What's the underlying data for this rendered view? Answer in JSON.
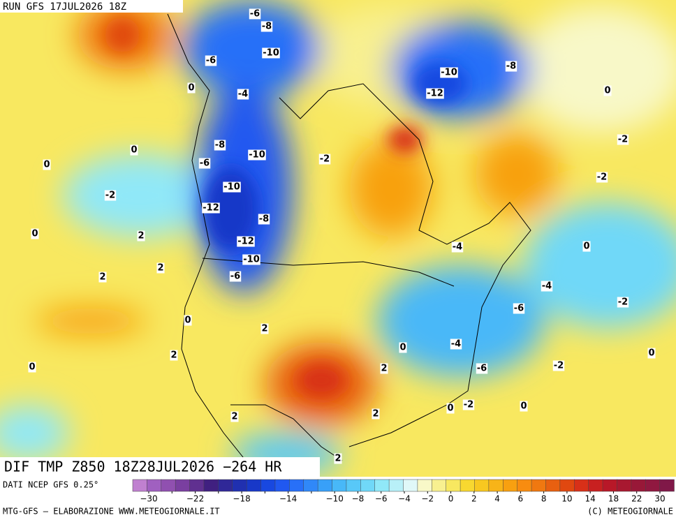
{
  "run_label": "RUN GFS 17JUL2026 18Z",
  "field_label": "DIF TMP Z850 18Z28JUL2026 −264 HR",
  "source": "DATI NCEP GFS 0.25°",
  "credit_left": "MTG-GFS — ELABORAZIONE WWW.METEOGIORNALE.IT",
  "credit_right": "(C) METEOGIORNALE",
  "colorbar": {
    "ticks": [
      {
        "value": -30,
        "label": "−30"
      },
      {
        "value": -26,
        "label": ""
      },
      {
        "value": -22,
        "label": "−22"
      },
      {
        "value": -20,
        "label": ""
      },
      {
        "value": -18,
        "label": "−18"
      },
      {
        "value": -16,
        "label": ""
      },
      {
        "value": -14,
        "label": "−14"
      },
      {
        "value": -12,
        "label": ""
      },
      {
        "value": -10,
        "label": "−10"
      },
      {
        "value": -8,
        "label": "−8"
      },
      {
        "value": -6,
        "label": "−6"
      },
      {
        "value": -4,
        "label": "−4"
      },
      {
        "value": -2,
        "label": "−2"
      },
      0,
      2,
      4,
      6,
      8,
      10,
      14,
      18,
      22,
      30
    ],
    "colors": [
      "#c080d0",
      "#a060c0",
      "#9050b0",
      "#7a3fa0",
      "#603090",
      "#402080",
      "#302898",
      "#2030b0",
      "#1838c8",
      "#1848e0",
      "#2058f0",
      "#2870f8",
      "#3088f8",
      "#38a0f8",
      "#48b8f8",
      "#58c8f8",
      "#70d8f8",
      "#90e8f8",
      "#b8f0f8",
      "#e0f8f8",
      "#f8f8c8",
      "#f8f090",
      "#f8e860",
      "#f8d830",
      "#f8c820",
      "#f8b418",
      "#f8a010",
      "#f88c10",
      "#f07810",
      "#e86010",
      "#e04810",
      "#d83018",
      "#c82020",
      "#b81828",
      "#a81830",
      "#981838",
      "#901840",
      "#801848"
    ]
  },
  "contour_labels": [
    -6,
    -8,
    -10,
    -6,
    -4,
    -8,
    -10,
    -6,
    -12,
    -10,
    -8,
    -12,
    -10,
    -6,
    -4,
    -6,
    -4,
    -6,
    -12,
    -10,
    -8,
    -2,
    -2,
    0,
    2,
    2,
    0,
    2,
    0,
    2,
    2,
    0,
    2,
    0,
    0,
    -2,
    0,
    -4,
    -2,
    0,
    -2,
    -2,
    0,
    2,
    2,
    0,
    -2,
    0,
    2,
    0
  ]
}
